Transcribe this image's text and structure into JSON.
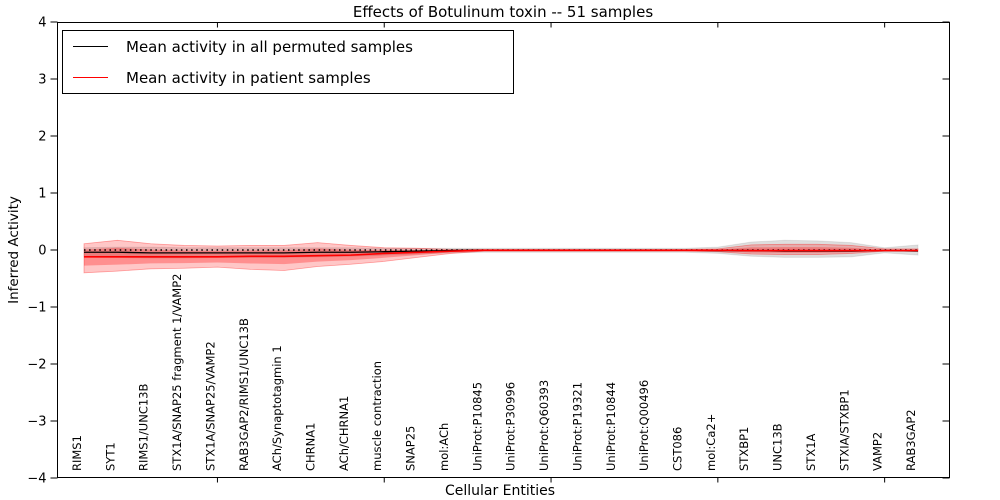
{
  "chart_data": {
    "type": "line",
    "title": "Effects of Botulinum toxin -- 51 samples",
    "xlabel": "Cellular Entities",
    "ylabel": "Inferred Activity",
    "ylim": [
      -4,
      4
    ],
    "yticks": [
      -4,
      -3,
      -2,
      -1,
      0,
      1,
      2,
      3,
      4
    ],
    "grid": false,
    "legend_position": "upper left",
    "zero_reference_line": {
      "style": "dotted",
      "color": "#000000",
      "y": 0
    },
    "categories": [
      "RIMS1",
      "SYT1",
      "RIMS1/UNC13B",
      "STX1A/SNAP25 fragment 1/VAMP2",
      "STX1A/SNAP25/VAMP2",
      "RAB3GAP2/RIMS1/UNC13B",
      "ACh/Synaptotagmin 1",
      "CHRNA1",
      "ACh/CHRNA1",
      "muscle contraction",
      "SNAP25",
      "mol:ACh",
      "UniProt:P10845",
      "UniProt:P30996",
      "UniProt:Q60393",
      "UniProt:P19321",
      "UniProt:P10844",
      "UniProt:Q00496",
      "CST086",
      "mol:Ca2+",
      "STXBP1",
      "UNC13B",
      "STX1A",
      "STXIA/STXBP1",
      "VAMP2",
      "RAB3GAP2"
    ],
    "xtick_positions": [
      4,
      9,
      14,
      19,
      24
    ],
    "series": [
      {
        "name": "Mean activity in all permuted samples",
        "color": "#000000",
        "band_color": "rgba(0,0,0,0.13)",
        "band_edge_color": "rgba(0,0,0,0.08)",
        "mean": [
          -0.04,
          -0.04,
          -0.05,
          -0.05,
          -0.05,
          -0.05,
          -0.05,
          -0.04,
          -0.04,
          -0.03,
          -0.02,
          -0.01,
          -0.005,
          -0.005,
          -0.005,
          -0.005,
          -0.005,
          -0.005,
          -0.005,
          -0.01,
          -0.01,
          -0.02,
          -0.02,
          -0.02,
          -0.01,
          -0.02
        ],
        "upper": [
          0.04,
          0.05,
          0.05,
          0.04,
          0.04,
          0.04,
          0.04,
          0.04,
          0.04,
          0.03,
          0.03,
          0.03,
          0.03,
          0.03,
          0.03,
          0.03,
          0.03,
          0.03,
          0.03,
          0.05,
          0.14,
          0.17,
          0.16,
          0.13,
          0.04,
          0.09
        ],
        "lower": [
          -0.12,
          -0.13,
          -0.14,
          -0.14,
          -0.13,
          -0.13,
          -0.13,
          -0.12,
          -0.11,
          -0.09,
          -0.07,
          -0.05,
          -0.04,
          -0.04,
          -0.04,
          -0.04,
          -0.04,
          -0.04,
          -0.04,
          -0.06,
          -0.11,
          -0.13,
          -0.13,
          -0.12,
          -0.05,
          -0.09
        ]
      },
      {
        "name": "Mean activity in patient samples",
        "color": "#ff0000",
        "band_color": "rgba(255,0,0,0.22)",
        "band_edge_color": "rgba(255,0,0,0.35)",
        "inner_band_color": "rgba(255,0,0,0.28)",
        "inner_band_scale": 0.55,
        "mean": [
          -0.12,
          -0.12,
          -0.12,
          -0.12,
          -0.12,
          -0.11,
          -0.11,
          -0.1,
          -0.09,
          -0.06,
          -0.04,
          -0.02,
          -0.005,
          -0.005,
          -0.005,
          -0.005,
          -0.005,
          -0.005,
          -0.005,
          -0.005,
          -0.01,
          -0.01,
          -0.01,
          -0.01,
          -0.01,
          -0.01
        ],
        "upper": [
          0.11,
          0.17,
          0.11,
          0.08,
          0.07,
          0.08,
          0.08,
          0.13,
          0.08,
          0.04,
          0.03,
          0.01,
          0.01,
          0.01,
          0.01,
          0.01,
          0.01,
          0.01,
          0.01,
          0.02,
          0.09,
          0.1,
          0.1,
          0.08,
          0.02,
          0.02
        ],
        "lower": [
          -0.4,
          -0.37,
          -0.33,
          -0.32,
          -0.3,
          -0.34,
          -0.36,
          -0.29,
          -0.25,
          -0.2,
          -0.13,
          -0.06,
          -0.02,
          -0.02,
          -0.02,
          -0.02,
          -0.02,
          -0.02,
          -0.02,
          -0.03,
          -0.07,
          -0.08,
          -0.08,
          -0.06,
          -0.02,
          -0.02
        ]
      }
    ],
    "legend": {
      "entries": [
        {
          "label": "Mean activity in all permuted samples",
          "color": "#000000"
        },
        {
          "label": "Mean activity in patient samples",
          "color": "#ff0000"
        }
      ]
    }
  }
}
